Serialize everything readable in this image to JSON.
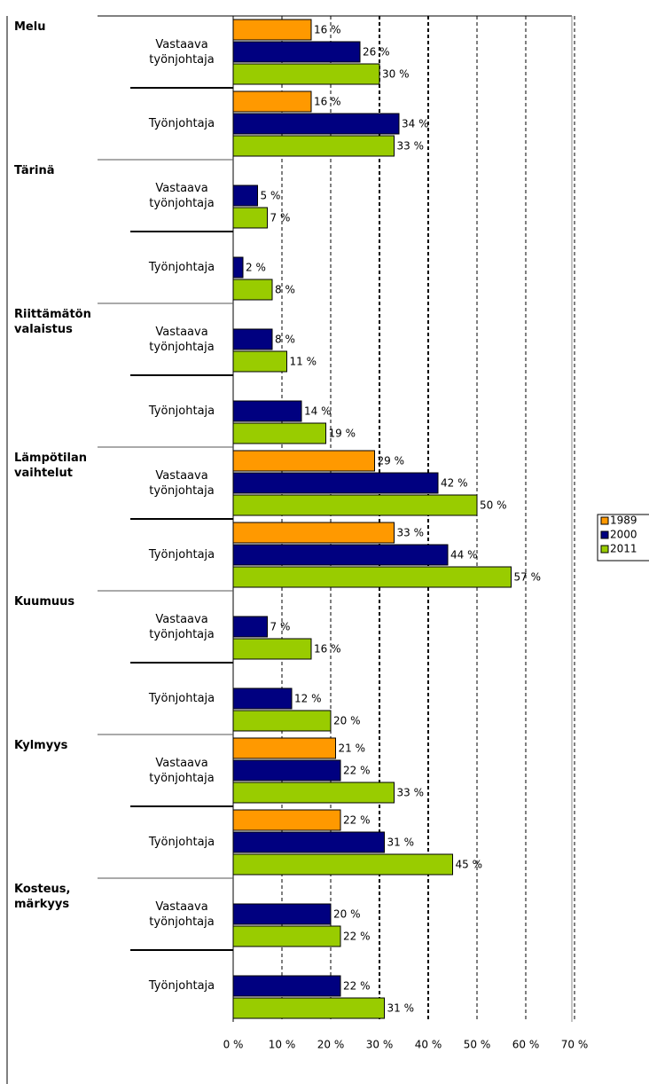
{
  "chart_data": {
    "type": "bar",
    "orientation": "horizontal",
    "groups": [
      "Melu",
      "Tärinä",
      "Riittämätön valaistus",
      "Lämpötilan vaihtelut",
      "Kuumuus",
      "Kylmyys",
      "Kosteus, märkyys"
    ],
    "categories": [
      "Vastaava työnjohtaja",
      "Työnjohtaja",
      "Vastaava työnjohtaja",
      "Työnjohtaja",
      "Vastaava työnjohtaja",
      "Työnjohtaja",
      "Vastaava työnjohtaja",
      "Työnjohtaja",
      "Vastaava työnjohtaja",
      "Työnjohtaja",
      "Vastaava työnjohtaja",
      "Työnjohtaja",
      "Vastaava työnjohtaja",
      "Työnjohtaja"
    ],
    "series": [
      {
        "name": "1989",
        "color": "#ff9900",
        "values": [
          16,
          16,
          null,
          null,
          null,
          null,
          29,
          33,
          null,
          null,
          21,
          22,
          null,
          null
        ],
        "value_labels": [
          "16 %",
          "16 %",
          null,
          null,
          null,
          null,
          "29 %",
          "33 %",
          null,
          null,
          "21 %",
          "22 %",
          null,
          null
        ]
      },
      {
        "name": "2000",
        "color": "#000080",
        "values": [
          26,
          34,
          5,
          2,
          8,
          14,
          42,
          44,
          7,
          12,
          22,
          31,
          20,
          22
        ],
        "value_labels": [
          "26 %",
          "34 %",
          "5 %",
          "2 %",
          "8 %",
          "14 %",
          "42 %",
          "44 %",
          "7 %",
          "12 %",
          "22 %",
          "31 %",
          "20 %",
          "22 %"
        ]
      },
      {
        "name": "2011",
        "color": "#99cc00",
        "values": [
          30,
          33,
          7,
          8,
          11,
          19,
          50,
          57,
          16,
          20,
          33,
          45,
          22,
          31
        ],
        "value_labels": [
          "30 %",
          "33 %",
          "7 %",
          "8 %",
          "11 %",
          "19 %",
          "50 %",
          "57 %",
          "16 %",
          "20 %",
          "33 %",
          "45 %",
          "22 %",
          "31 %"
        ]
      }
    ],
    "xlim": [
      0,
      70
    ],
    "xticks": [
      {
        "value": 0,
        "label": "0 %"
      },
      {
        "value": 10,
        "label": "10 %"
      },
      {
        "value": 20,
        "label": "20 %"
      },
      {
        "value": 30,
        "label": "30 %"
      },
      {
        "value": 40,
        "label": "40 %"
      },
      {
        "value": 50,
        "label": "50 %"
      },
      {
        "value": 60,
        "label": "60 %"
      },
      {
        "value": 70,
        "label": "70 %"
      }
    ],
    "grid": true,
    "legend": "right"
  }
}
